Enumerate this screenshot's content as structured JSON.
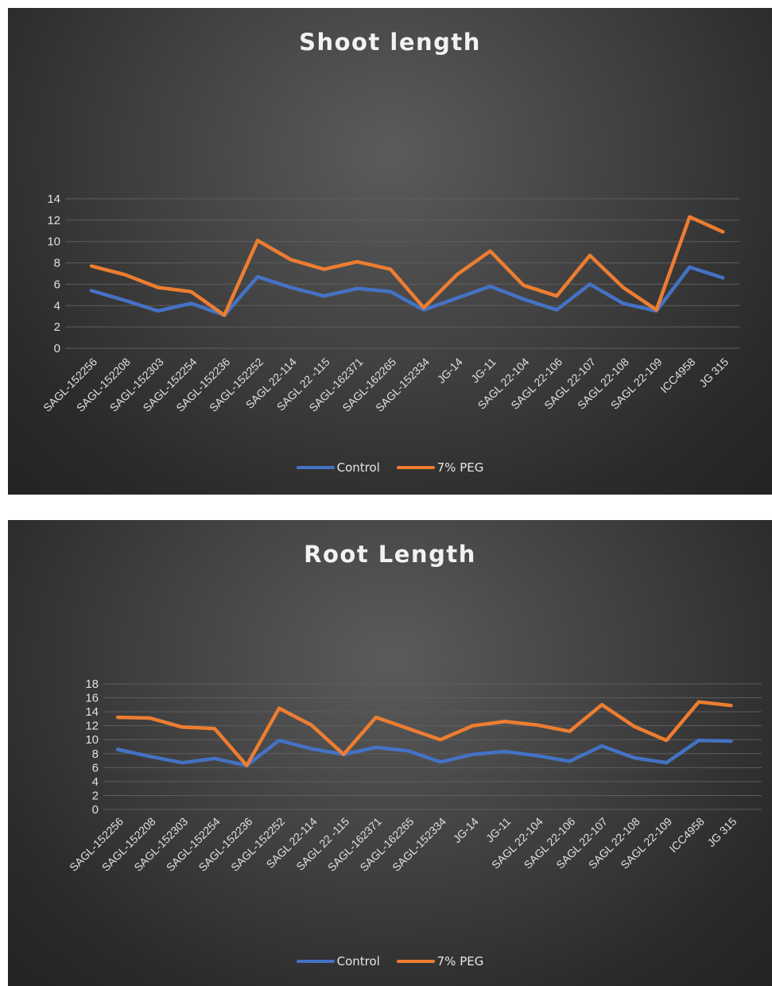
{
  "chart_data": [
    {
      "type": "line",
      "title": "Shoot length",
      "xlabel": "",
      "ylabel": "",
      "ylim": [
        0,
        14
      ],
      "yticks": [
        0,
        2,
        4,
        6,
        8,
        10,
        12,
        14
      ],
      "grid": true,
      "legend_position": "bottom",
      "categories": [
        "SAGL-152256",
        "SAGL-152208",
        "SAGL-152303",
        "SAGL-152254",
        "SAGL-152236",
        "SAGL-152252",
        "SAGL 22-114",
        "SAGL 22 -115",
        "SAGL-162371",
        "SAGL-162265",
        "SAGL-152334",
        "JG-14",
        "JG-11",
        "SAGL 22-104",
        "SAGL 22-106",
        "SAGL 22-107",
        "SAGL 22-108",
        "SAGL 22-109",
        "ICC4958",
        "JG 315"
      ],
      "series": [
        {
          "name": "Control",
          "color": "#4472c4",
          "values": [
            5.4,
            4.5,
            3.5,
            4.2,
            3.1,
            6.7,
            5.7,
            4.9,
            5.6,
            5.3,
            3.6,
            4.7,
            5.8,
            4.6,
            3.6,
            6.0,
            4.2,
            3.5,
            7.6,
            6.6
          ]
        },
        {
          "name": "7% PEG",
          "color": "#ed7d31",
          "values": [
            7.7,
            6.9,
            5.7,
            5.3,
            3.1,
            10.1,
            8.3,
            7.4,
            8.1,
            7.4,
            3.8,
            6.9,
            9.1,
            5.9,
            4.9,
            8.7,
            5.7,
            3.6,
            12.3,
            10.9
          ]
        }
      ]
    },
    {
      "type": "line",
      "title": "Root Length",
      "xlabel": "",
      "ylabel": "",
      "ylim": [
        0,
        18
      ],
      "yticks": [
        0,
        2,
        4,
        6,
        8,
        10,
        12,
        14,
        16,
        18
      ],
      "grid": true,
      "legend_position": "bottom",
      "categories": [
        "SAGL-152256",
        "SAGL-152208",
        "SAGL-152303",
        "SAGL-152254",
        "SAGL-152236",
        "SAGL-152252",
        "SAGL 22-114",
        "SAGL 22 -115",
        "SAGL-162371",
        "SAGL-162265",
        "SAGL-152334",
        "JG-14",
        "JG-11",
        "SAGL 22-104",
        "SAGL 22-106",
        "SAGL 22-107",
        "SAGL 22-108",
        "SAGL 22-109",
        "ICC4958",
        "JG 315"
      ],
      "series": [
        {
          "name": "Control",
          "color": "#4472c4",
          "values": [
            8.6,
            7.6,
            6.7,
            7.3,
            6.3,
            9.9,
            8.7,
            7.9,
            8.9,
            8.4,
            6.8,
            7.9,
            8.3,
            7.7,
            6.9,
            9.1,
            7.4,
            6.7,
            9.9,
            9.8
          ]
        },
        {
          "name": "7% PEG",
          "color": "#ed7d31",
          "values": [
            13.2,
            13.1,
            11.8,
            11.6,
            6.3,
            14.5,
            12.1,
            7.9,
            13.2,
            11.6,
            10.0,
            12.0,
            12.6,
            12.1,
            11.2,
            15.0,
            11.9,
            9.9,
            15.4,
            14.9
          ]
        }
      ]
    }
  ]
}
